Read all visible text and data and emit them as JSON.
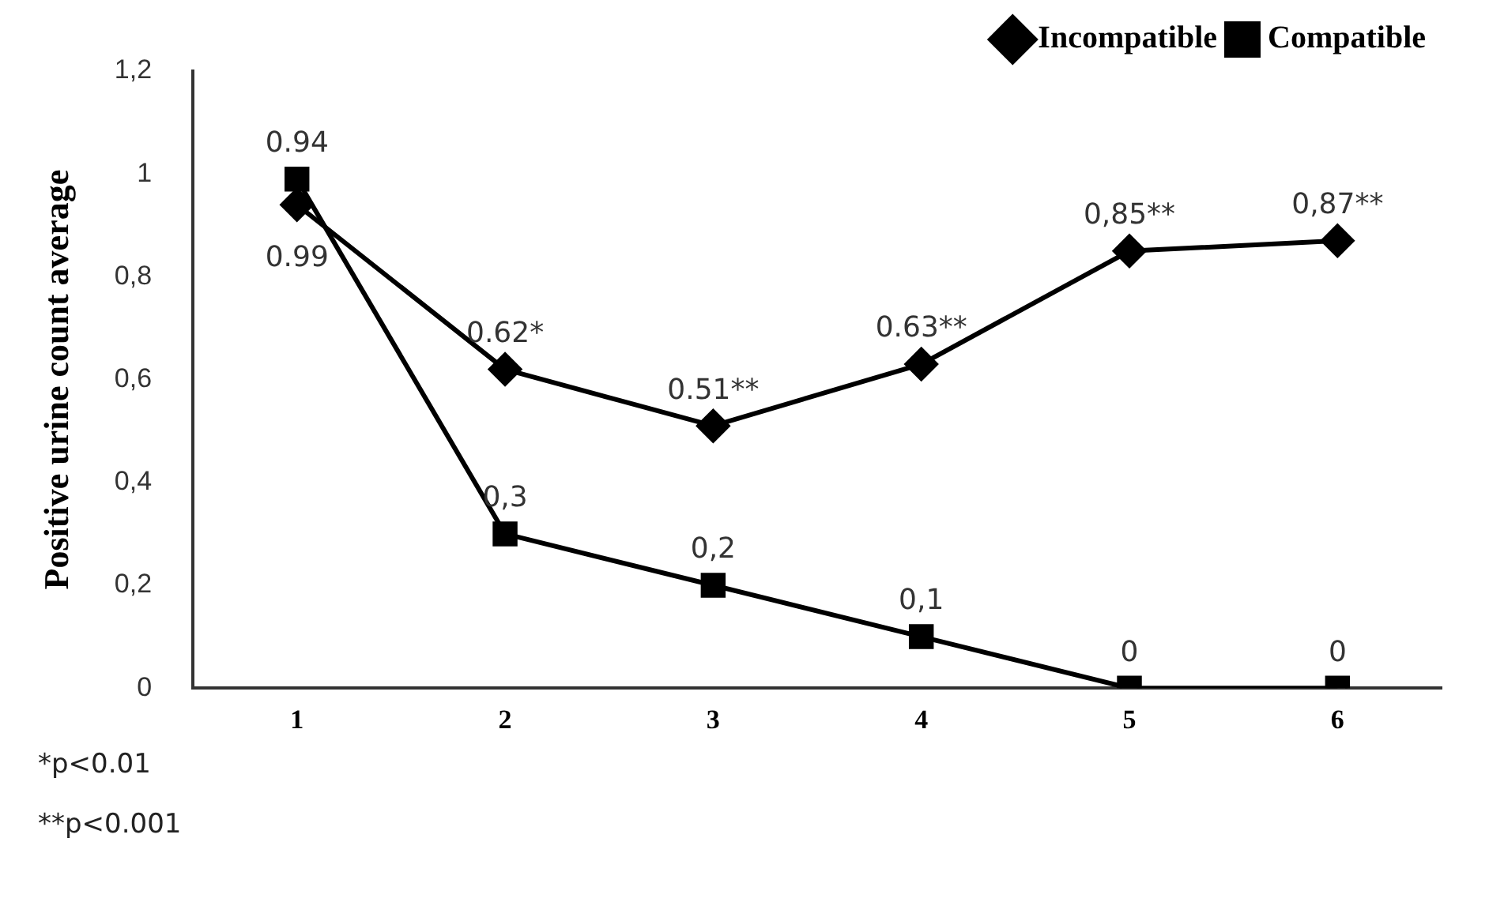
{
  "chart_data": {
    "type": "line",
    "ylabel": "Positive urine count average",
    "categories": [
      "1",
      "2",
      "3",
      "4",
      "5",
      "6"
    ],
    "series": [
      {
        "name": "Incompatible",
        "color": "#000000",
        "marker": "diamond",
        "values": [
          0.94,
          0.62,
          0.51,
          0.63,
          0.85,
          0.87
        ],
        "value_labels": [
          "0.94",
          "0.62*",
          "0.51**",
          "0.63**",
          "0,85**",
          "0,87**"
        ]
      },
      {
        "name": "Compatible",
        "color": "#000000",
        "marker": "square",
        "values": [
          0.99,
          0.3,
          0.2,
          0.1,
          0,
          0
        ],
        "value_labels": [
          "0.99",
          "0,3",
          "0,2",
          "0,1",
          "0",
          "0"
        ]
      }
    ],
    "ylim": [
      0,
      1.2
    ],
    "yticks": [
      {
        "value": 0,
        "label": "0"
      },
      {
        "value": 0.2,
        "label": "0,2"
      },
      {
        "value": 0.4,
        "label": "0,4"
      },
      {
        "value": 0.6,
        "label": "0,6"
      },
      {
        "value": 0.8,
        "label": "0,8"
      },
      {
        "value": 1,
        "label": "1"
      },
      {
        "value": 1.2,
        "label": "1,2"
      }
    ],
    "grid": false,
    "legend": "top",
    "line_style": "solid",
    "annotations": [
      "*p<0.01",
      "**p<0.001"
    ]
  }
}
